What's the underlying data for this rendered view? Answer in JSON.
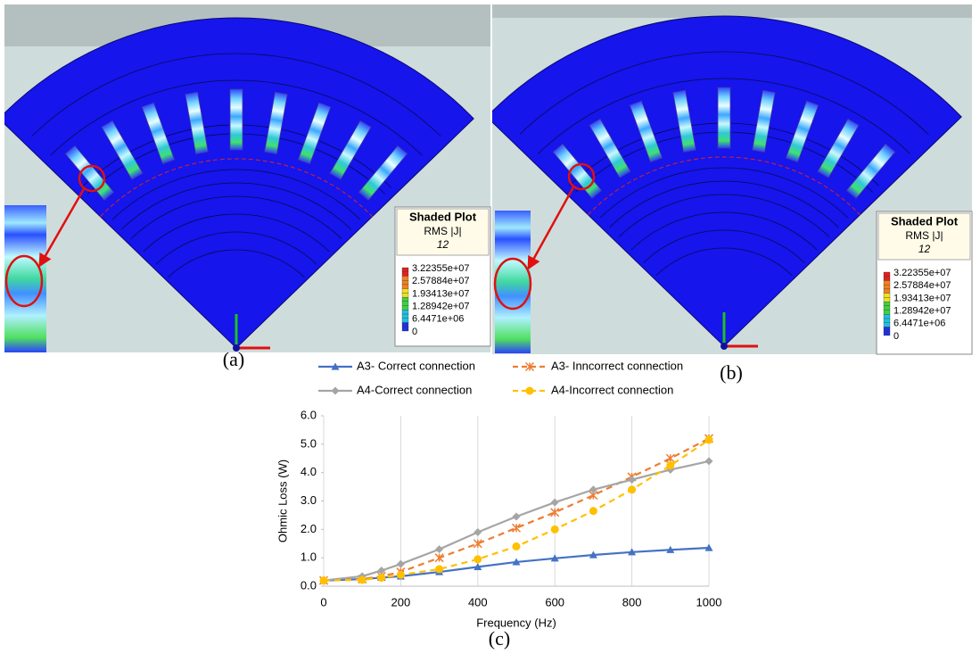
{
  "panels": [
    {
      "caption": "(a)",
      "legend": {
        "title": "Shaded Plot",
        "quantity": "RMS |J|",
        "step": "12",
        "levels": [
          "3.22355e+07",
          "2.57884e+07",
          "1.93413e+07",
          "1.28942e+07",
          "6.4471e+06",
          "0"
        ]
      }
    },
    {
      "caption": "(b)",
      "legend": {
        "title": "Shaded Plot",
        "quantity": "RMS |J|",
        "step": "12",
        "levels": [
          "3.22355e+07",
          "2.57884e+07",
          "1.93413e+07",
          "1.28942e+07",
          "6.4471e+06",
          "0"
        ]
      }
    }
  ],
  "chart_data": {
    "type": "line",
    "caption": "(c)",
    "x_label": "Frequency (Hz)",
    "y_label": "Ohmic Loss (W)",
    "x": [
      0,
      100,
      150,
      200,
      300,
      400,
      500,
      600,
      700,
      800,
      900,
      1000
    ],
    "series": [
      {
        "name": "A3- Correct connection",
        "color": "#4472c4",
        "marker": "triangle",
        "dashed": false,
        "values": [
          0.2,
          0.25,
          0.3,
          0.35,
          0.5,
          0.68,
          0.85,
          0.98,
          1.1,
          1.2,
          1.28,
          1.35
        ]
      },
      {
        "name": "A3- Inncorrect connection",
        "color": "#ed7d31",
        "marker": "asterisk",
        "dashed": true,
        "values": [
          0.2,
          0.25,
          0.35,
          0.5,
          1.0,
          1.5,
          2.05,
          2.6,
          3.2,
          3.85,
          4.5,
          5.2
        ]
      },
      {
        "name": "A4-Correct connection",
        "color": "#a5a5a5",
        "marker": "diamond",
        "dashed": false,
        "values": [
          0.2,
          0.35,
          0.55,
          0.78,
          1.3,
          1.9,
          2.45,
          2.95,
          3.4,
          3.75,
          4.1,
          4.4
        ]
      },
      {
        "name": "A4-Incorrect connection",
        "color": "#ffc000",
        "marker": "circle",
        "dashed": true,
        "values": [
          0.2,
          0.22,
          0.3,
          0.4,
          0.6,
          0.95,
          1.4,
          2.0,
          2.65,
          3.4,
          4.25,
          5.15
        ]
      }
    ],
    "xlim": [
      0,
      1000
    ],
    "xticks": [
      0,
      200,
      400,
      600,
      800,
      1000
    ],
    "ylim": [
      0,
      6
    ],
    "yticks": [
      {
        "value": 0,
        "label": "0.0"
      },
      {
        "value": 1,
        "label": "1.0"
      },
      {
        "value": 2,
        "label": "2.0"
      },
      {
        "value": 3,
        "label": "3.0"
      },
      {
        "value": 4,
        "label": "4.0"
      },
      {
        "value": 5,
        "label": "5.0"
      },
      {
        "value": 6,
        "label": "6.0"
      }
    ],
    "grid": "x"
  }
}
